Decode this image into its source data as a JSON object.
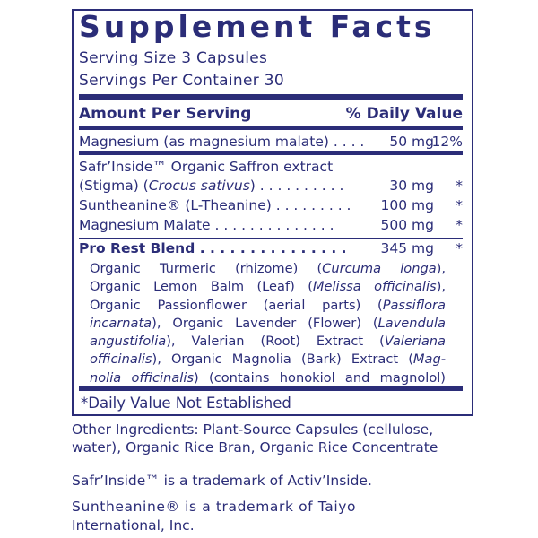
{
  "label": {
    "title": "Supplement Facts",
    "serving_size": "Serving Size 3 Capsules",
    "servings_per_container": "Servings Per Container 30",
    "header_amount": "Amount Per Serving",
    "header_dv": "% Daily Value",
    "rows": [
      {
        "name": "Magnesium (as magnesium malate) . . . .",
        "amount": "50 mg",
        "dv": "12%"
      },
      {
        "name": "Safr’Inside™ Organic Saffron extract",
        "amount": "",
        "dv": ""
      },
      {
        "name_parts": [
          {
            "t": "(Stigma) (",
            "i": false
          },
          {
            "t": "Crocus sativus",
            "i": true
          },
          {
            "t": ") . . . . . . . . . .",
            "i": false
          }
        ],
        "amount": "30 mg",
        "dv": "*"
      },
      {
        "name": "Suntheanine® (L-Theanine) . . . . . . . . .",
        "amount": "100 mg",
        "dv": "*"
      },
      {
        "name": "Magnesium Malate  . . . . . . . . . . . . . .",
        "amount": "500 mg",
        "dv": "*"
      },
      {
        "name": "Pro Rest Blend  . . . . . . . . . . . . . . .",
        "amount": "345 mg",
        "dv": "*"
      }
    ],
    "blend_lines": [
      [
        {
          "t": "Organic Turmeric (rhizome) (",
          "i": false
        },
        {
          "t": "Curcuma longa",
          "i": true
        },
        {
          "t": "),",
          "i": false
        }
      ],
      [
        {
          "t": "Organic Lemon Balm (Leaf) (",
          "i": false
        },
        {
          "t": "Melissa officinalis",
          "i": true
        },
        {
          "t": "),",
          "i": false
        }
      ],
      [
        {
          "t": "Organic Passionflower (aerial parts) (",
          "i": false
        },
        {
          "t": "Passiflora",
          "i": true
        }
      ],
      [
        {
          "t": "incarnata",
          "i": true
        },
        {
          "t": "), Organic Lavender (Flower) (",
          "i": false
        },
        {
          "t": "Lavendula",
          "i": true
        }
      ],
      [
        {
          "t": "angustifolia",
          "i": true
        },
        {
          "t": "), Valerian (Root) Extract (",
          "i": false
        },
        {
          "t": "Valeriana",
          "i": true
        }
      ],
      [
        {
          "t": "officinalis",
          "i": true
        },
        {
          "t": "), Organic Magnolia (Bark) Extract (",
          "i": false
        },
        {
          "t": "Mag-",
          "i": true
        }
      ],
      [
        {
          "t": "nolia officinalis",
          "i": true
        },
        {
          "t": ") (contains honokiol and magnolol)",
          "i": false
        }
      ]
    ],
    "footnote": "*Daily Value Not Established"
  },
  "other_ingredients": [
    "Other Ingredients: Plant-Source Capsules (cellulose,",
    "water), Organic Rice Bran, Organic Rice Concentrate"
  ],
  "trademarks": [
    "Safr’Inside™ is a trademark of Activ’Inside.",
    "Suntheanine® is a trademark of Taiyo",
    "International, Inc."
  ],
  "colors": {
    "ink": "#2b2d78"
  }
}
